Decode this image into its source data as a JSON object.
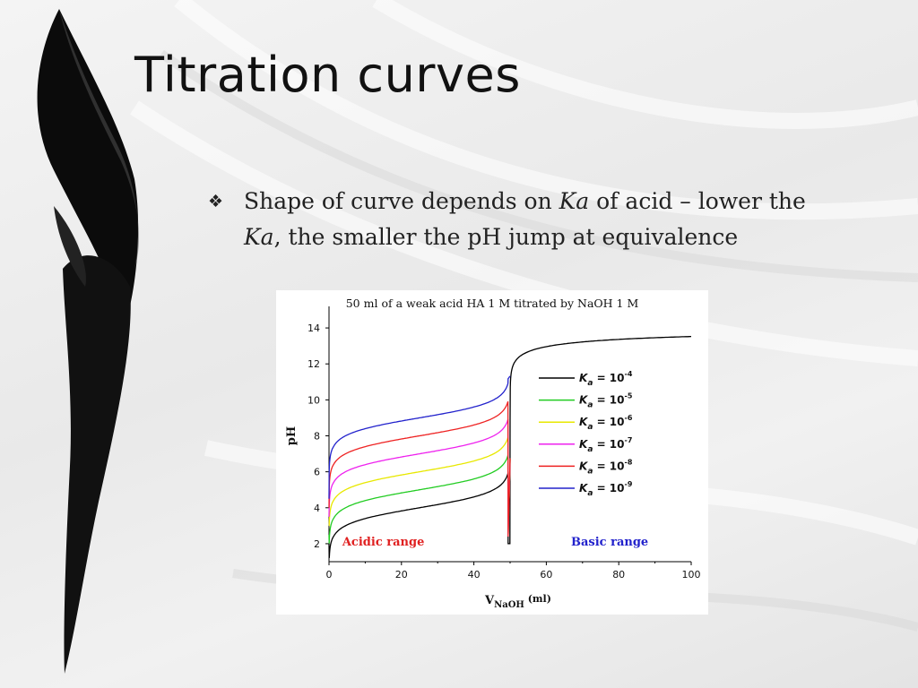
{
  "slide": {
    "title": "Titration curves",
    "bullet": {
      "icon": "diamond-bullet-icon",
      "parts": [
        {
          "text": "Shape of curve depends on ",
          "italic": false
        },
        {
          "text": "Ka",
          "italic": true
        },
        {
          "text": " of acid – lower the ",
          "italic": false
        },
        {
          "text": "Ka",
          "italic": true
        },
        {
          "text": ", the smaller the pH jump at equivalence",
          "italic": false
        }
      ]
    }
  },
  "chart_data": {
    "type": "line",
    "title": "50 ml of a weak acid HA 1 M titrated by NaOH 1 M",
    "xlabel_main": "V",
    "xlabel_sub": "NaOH",
    "xlabel_unit": " (ml)",
    "ylabel": "pH",
    "xlim": [
      0,
      100
    ],
    "ylim": [
      1,
      15
    ],
    "x_ticks": [
      0,
      20,
      40,
      60,
      80,
      100
    ],
    "x_tick_labels": [
      "0",
      "20",
      "40",
      "60",
      "80",
      "100"
    ],
    "y_ticks": [
      2,
      4,
      6,
      8,
      10,
      12,
      14
    ],
    "y_tick_labels": [
      "2",
      "4",
      "6",
      "8",
      "10",
      "12",
      "14"
    ],
    "grid": false,
    "legend_position": "right",
    "acid_volume_ml": 50,
    "concentration_M": 1,
    "annotations": [
      {
        "text": "Acidic range",
        "x": 15,
        "y": 1.9,
        "color": "#e02020"
      },
      {
        "text": "Basic range",
        "x": 77.5,
        "y": 1.9,
        "color": "#2222cc"
      }
    ],
    "series": [
      {
        "name_base": "10",
        "exponent": "-4",
        "pKa": 4,
        "color": "#000000"
      },
      {
        "name_base": "10",
        "exponent": "-5",
        "pKa": 5,
        "color": "#22cc22"
      },
      {
        "name_base": "10",
        "exponent": "-6",
        "pKa": 6,
        "color": "#e8e800"
      },
      {
        "name_base": "10",
        "exponent": "-7",
        "pKa": 7,
        "color": "#ee22ee"
      },
      {
        "name_base": "10",
        "exponent": "-8",
        "pKa": 8,
        "color": "#ee2222"
      },
      {
        "name_base": "10",
        "exponent": "-9",
        "pKa": 9,
        "color": "#2222cc"
      }
    ]
  }
}
